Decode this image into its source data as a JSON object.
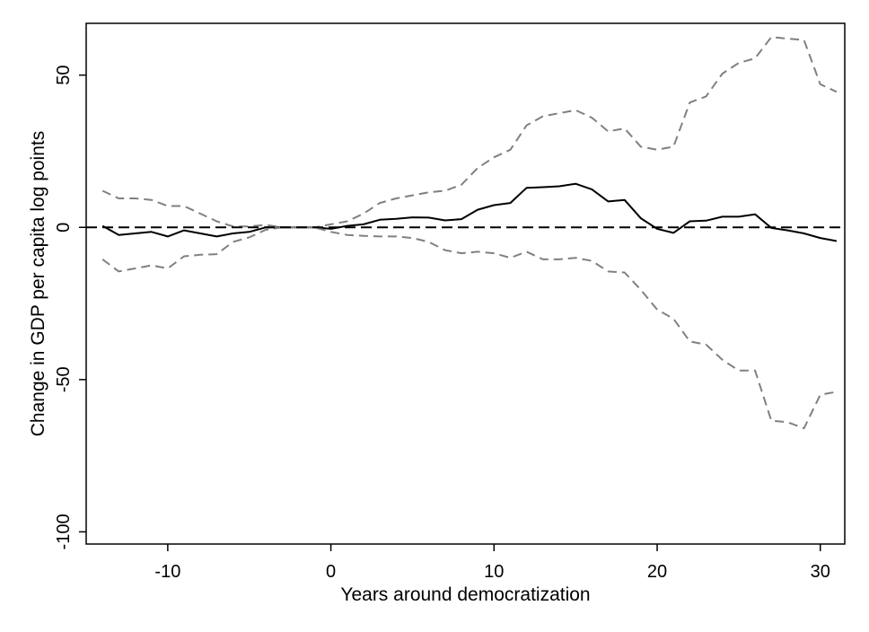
{
  "chart_data": {
    "type": "line",
    "title": "",
    "xlabel": "Years around democratization",
    "ylabel": "Change in GDP per capita log points",
    "xlim": [
      -15,
      31.5
    ],
    "ylim": [
      -104,
      67
    ],
    "xticks": [
      -10,
      0,
      10,
      20,
      30
    ],
    "yticks": [
      -100,
      -50,
      0,
      50
    ],
    "grid": false,
    "legend": "none",
    "reference_line": {
      "y": 0,
      "style": "dashed",
      "color": "#000000"
    },
    "x": [
      -14,
      -13,
      -12,
      -11,
      -10,
      -9,
      -8,
      -7,
      -6,
      -5,
      -4,
      -3,
      -2,
      -1,
      0,
      1,
      2,
      3,
      4,
      5,
      6,
      7,
      8,
      9,
      10,
      11,
      12,
      13,
      14,
      15,
      16,
      17,
      18,
      19,
      20,
      21,
      22,
      23,
      24,
      25,
      26,
      27,
      28,
      29,
      30,
      31
    ],
    "series": [
      {
        "style": "solid",
        "color": "#000000",
        "values": [
          0.5,
          -2.5,
          -2,
          -1.5,
          -3,
          -1,
          -2,
          -3,
          -2,
          -1.5,
          0,
          0,
          0,
          0,
          -0.5,
          0.5,
          1,
          2.5,
          2.8,
          3.3,
          3.2,
          2.3,
          2.7,
          5.8,
          7.3,
          8,
          13,
          13.2,
          13.5,
          14.3,
          12.5,
          8.5,
          9,
          3,
          -0.5,
          -1.8,
          2,
          2.2,
          3.5,
          3.5,
          4.3,
          -0.2,
          -1,
          -2,
          -3.5,
          -4.5
        ]
      },
      {
        "style": "dashed",
        "color": "#808080",
        "values": [
          12,
          9.5,
          9.5,
          9,
          7,
          7,
          4.5,
          2,
          0.3,
          0.3,
          0.8,
          0,
          0,
          0,
          1,
          2,
          4.5,
          8,
          9.5,
          10.5,
          11.5,
          12,
          14,
          19.5,
          23,
          25.5,
          33.5,
          36.5,
          37.5,
          38.5,
          36,
          31.5,
          32.5,
          26.5,
          25.5,
          26.5,
          41,
          43,
          50.5,
          54,
          55.5,
          62.5,
          62,
          61.5,
          47,
          44.5
        ]
      },
      {
        "style": "dashed",
        "color": "#808080",
        "values": [
          -10.5,
          -14.5,
          -13.5,
          -12.5,
          -13.5,
          -9.5,
          -9,
          -8.8,
          -4.8,
          -3.3,
          -0.8,
          0,
          0,
          0,
          -1.5,
          -2.5,
          -2.8,
          -3,
          -3,
          -3.5,
          -4.8,
          -7.5,
          -8.5,
          -8,
          -8.5,
          -10,
          -8,
          -10.5,
          -10.5,
          -10,
          -11,
          -14.5,
          -14.8,
          -20.5,
          -27,
          -30,
          -37.5,
          -38.5,
          -43.5,
          -47,
          -47,
          -63.5,
          -64,
          -66,
          -55,
          -54
        ]
      }
    ]
  }
}
